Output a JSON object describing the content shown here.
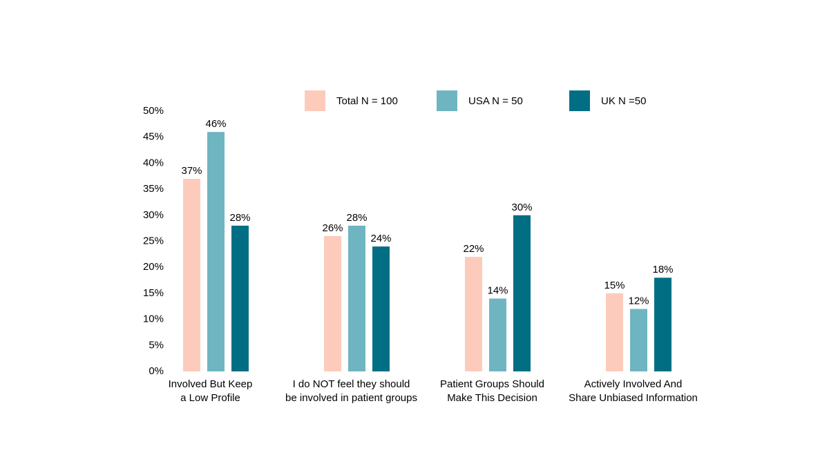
{
  "chart_data": {
    "type": "bar",
    "categories": [
      "Involved But Keep\na Low Profile",
      "I do NOT feel they should\nbe involved in patient groups",
      "Patient Groups Should\nMake This Decision",
      "Actively Involved And\nShare Unbiased Information"
    ],
    "series": [
      {
        "name": "Total N = 100",
        "color": "#fdcbbb",
        "values": [
          37,
          26,
          22,
          15
        ],
        "value_labels": [
          "37%",
          "26%",
          "22%",
          "15%"
        ]
      },
      {
        "name": "USA N = 50",
        "color": "#6fb5c1",
        "values": [
          46,
          28,
          14,
          12
        ],
        "value_labels": [
          "46%",
          "28%",
          "14%",
          "12%"
        ]
      },
      {
        "name": "UK N =50",
        "color": "#026e84",
        "values": [
          28,
          24,
          30,
          18
        ],
        "value_labels": [
          "28%",
          "24%",
          "30%",
          "18%"
        ]
      }
    ],
    "ylim": [
      0,
      50
    ],
    "yticks": [
      {
        "value": 0,
        "label": "0%"
      },
      {
        "value": 5,
        "label": "5%"
      },
      {
        "value": 10,
        "label": "10%"
      },
      {
        "value": 15,
        "label": "15%"
      },
      {
        "value": 20,
        "label": "20%"
      },
      {
        "value": 25,
        "label": "25%"
      },
      {
        "value": 30,
        "label": "30%"
      },
      {
        "value": 35,
        "label": "35%"
      },
      {
        "value": 40,
        "label": "40%"
      },
      {
        "value": 45,
        "label": "45%"
      },
      {
        "value": 50,
        "label": "50%"
      }
    ],
    "grid": false,
    "legend": "top"
  }
}
